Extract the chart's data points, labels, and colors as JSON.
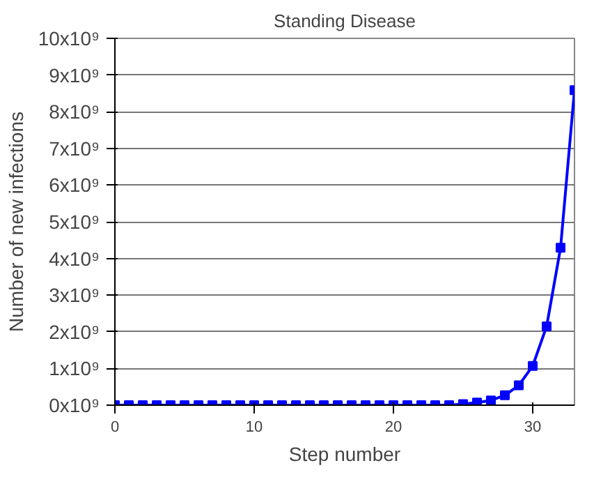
{
  "chart_data": {
    "type": "line",
    "title": "Standing Disease",
    "xlabel": "Step number",
    "ylabel": "Number of new infections",
    "x": [
      0,
      1,
      2,
      3,
      4,
      5,
      6,
      7,
      8,
      9,
      10,
      11,
      12,
      13,
      14,
      15,
      16,
      17,
      18,
      19,
      20,
      21,
      22,
      23,
      24,
      25,
      26,
      27,
      28,
      29,
      30,
      31,
      32,
      33
    ],
    "series": [
      {
        "color": "#0000ff",
        "values": [
          0,
          0,
          0,
          0,
          0,
          0,
          0,
          0,
          0,
          0,
          0,
          0,
          0,
          0,
          0,
          0,
          0,
          0,
          0,
          0,
          0,
          0,
          0,
          0,
          0,
          30000000,
          70000000,
          130000000,
          270000000,
          540000000,
          1070000000,
          2150000000,
          4290000000,
          8590000000
        ]
      }
    ],
    "xlim": [
      0,
      33
    ],
    "xticks": [
      0,
      10,
      20,
      30
    ],
    "ylim": [
      0,
      10000000000
    ],
    "yticks": [
      {
        "value": 0,
        "label": "0x10⁹"
      },
      {
        "value": 1000000000,
        "label": "1x10⁹"
      },
      {
        "value": 2000000000,
        "label": "2x10⁹"
      },
      {
        "value": 3000000000,
        "label": "3x10⁹"
      },
      {
        "value": 4000000000,
        "label": "4x10⁹"
      },
      {
        "value": 5000000000,
        "label": "5x10⁹"
      },
      {
        "value": 6000000000,
        "label": "6x10⁹"
      },
      {
        "value": 7000000000,
        "label": "7x10⁹"
      },
      {
        "value": 8000000000,
        "label": "8x10⁹"
      },
      {
        "value": 9000000000,
        "label": "9x10⁹"
      },
      {
        "value": 10000000000,
        "label": "10x10⁹"
      }
    ],
    "grid": "y",
    "marker": "square",
    "line_style": "solid"
  }
}
